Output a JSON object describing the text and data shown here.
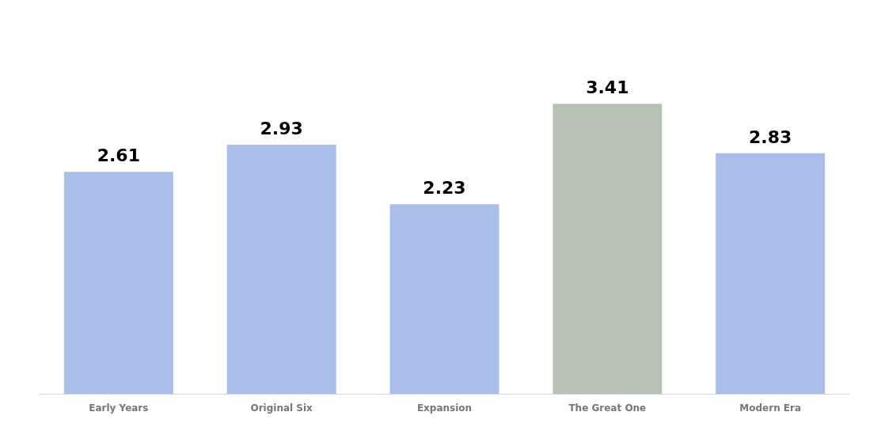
{
  "chart_data": {
    "type": "bar",
    "categories": [
      "Early Years",
      "Original Six",
      "Expansion",
      "The Great One",
      "Modern Era"
    ],
    "values": [
      2.61,
      2.93,
      2.23,
      3.41,
      2.83
    ],
    "colors": [
      "#a9bfe8",
      "#a9bfe8",
      "#a9bfe8",
      "#b9c1b4",
      "#a9bfe8"
    ],
    "data_labels": true
  }
}
